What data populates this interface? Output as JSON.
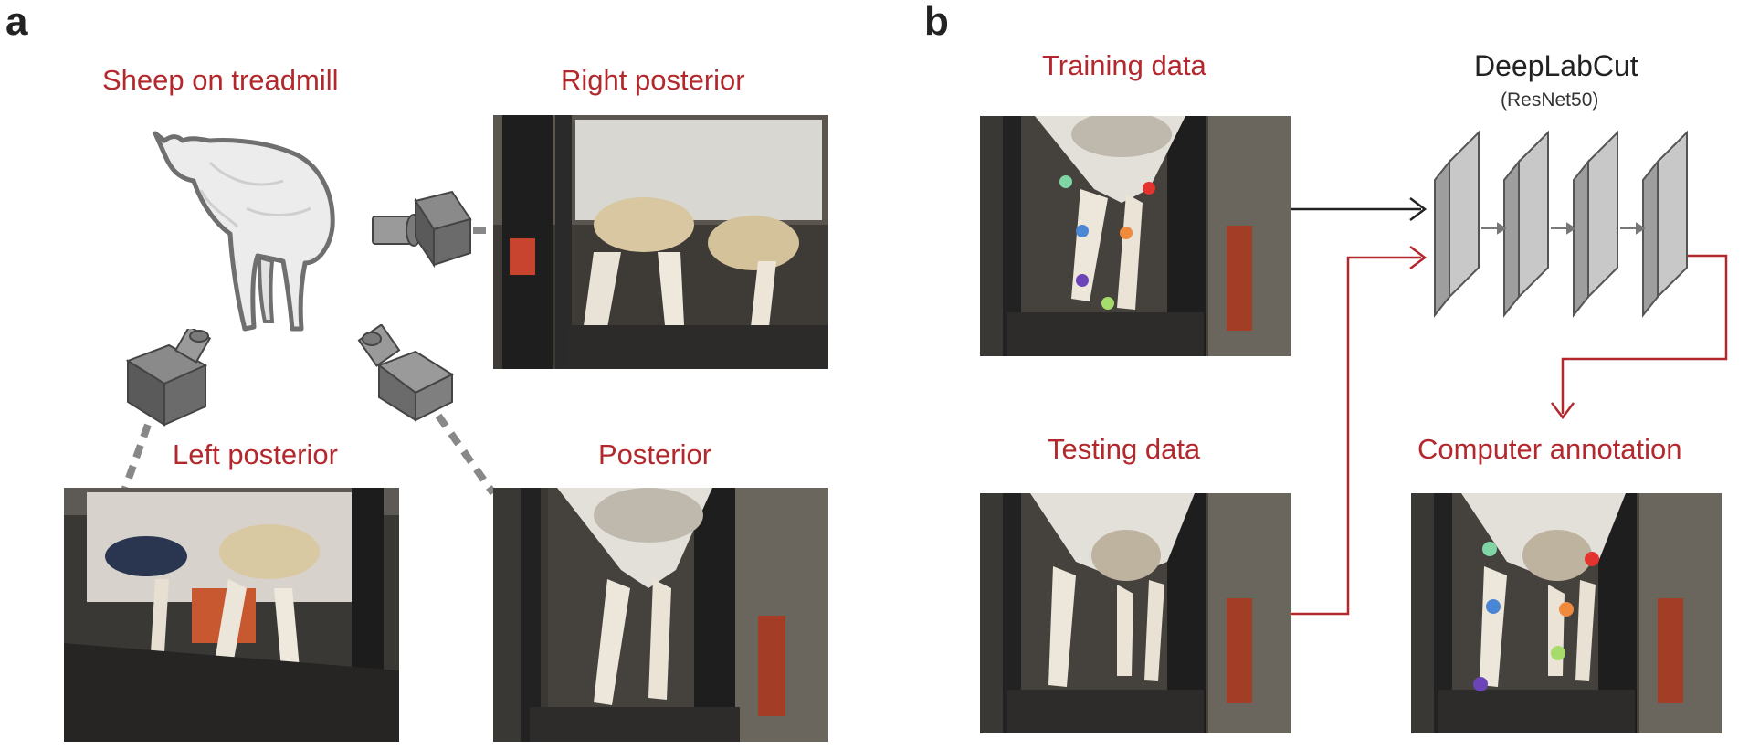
{
  "panel_a": {
    "letter": "a",
    "captions": {
      "sheep": "Sheep on treadmill",
      "right_posterior": "Right posterior",
      "left_posterior": "Left posterior",
      "posterior": "Posterior"
    }
  },
  "panel_b": {
    "letter": "b",
    "captions": {
      "training": "Training data",
      "testing": "Testing data",
      "computer": "Computer annotation"
    },
    "network": {
      "title": "DeepLabCut",
      "subtitle": "(ResNet50)"
    }
  },
  "colors": {
    "caption_red": "#b3282d",
    "arrow_black": "#222222",
    "arrow_red": "#b3282d",
    "layer_gray": "#c8c8c8",
    "camera_gray": "#6b6b6b",
    "keypoints": [
      "#7fd6a4",
      "#e2332f",
      "#4a86d4",
      "#f08a3c",
      "#6b45b8",
      "#a6dc6c"
    ]
  }
}
